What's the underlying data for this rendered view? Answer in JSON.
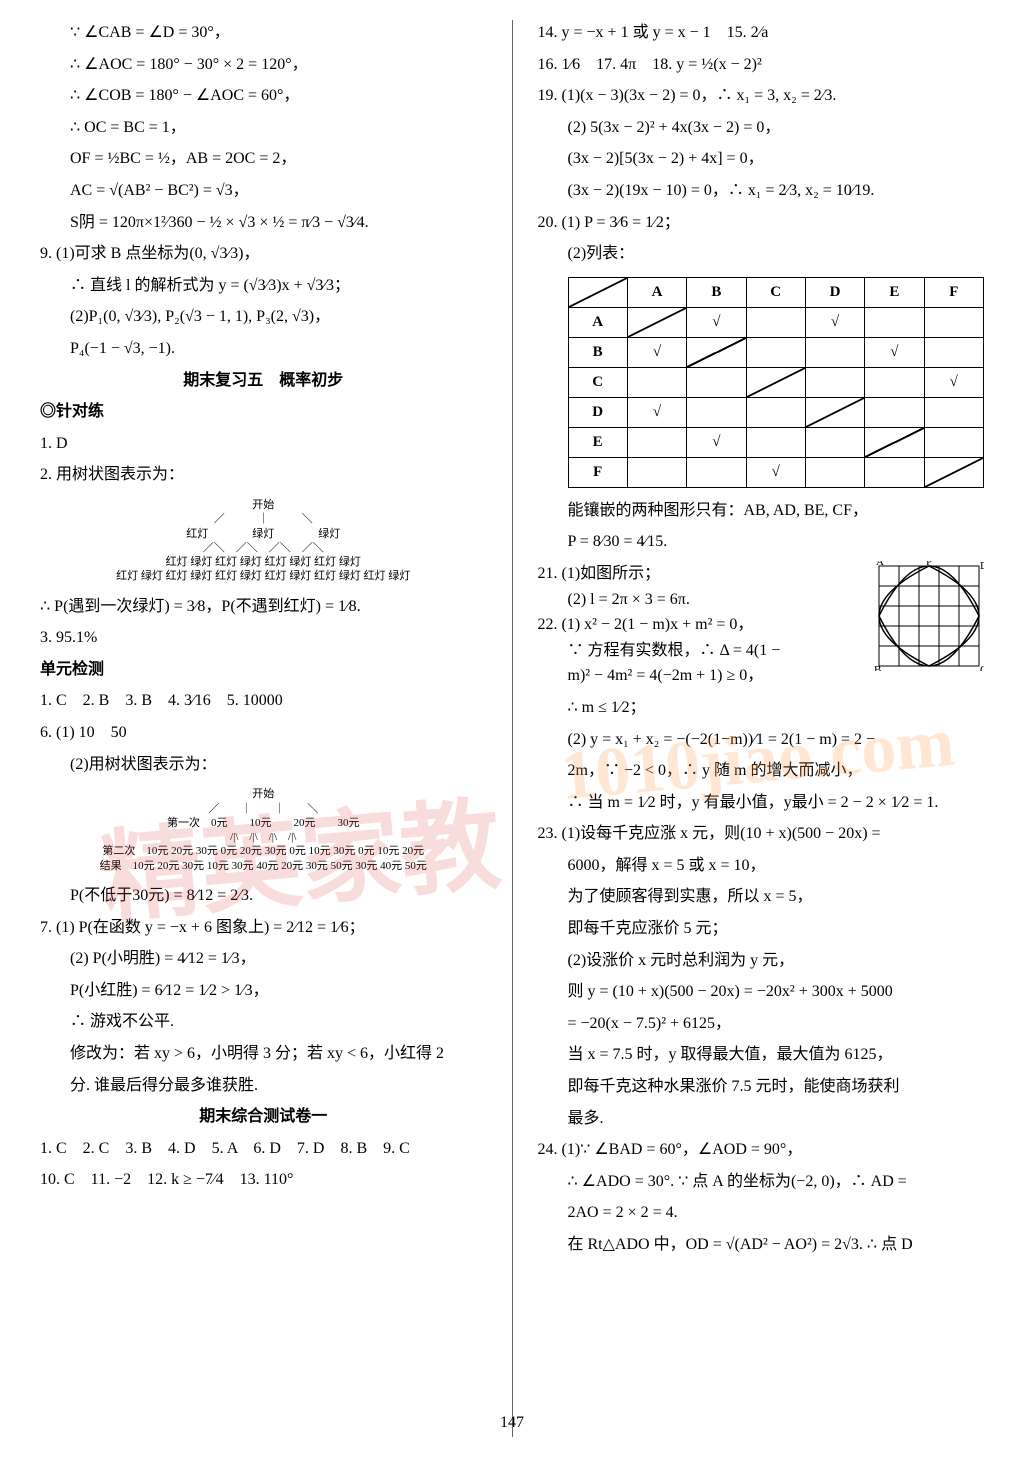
{
  "left": {
    "l1": "∵ ∠CAB = ∠D = 30°，",
    "l2": "∴ ∠AOC = 180° − 30° × 2 = 120°，",
    "l3": "∴ ∠COB = 180° − ∠AOC = 60°，",
    "l4": "∴ OC = BC = 1，",
    "l5": "OF = ½BC = ½，AB = 2OC = 2，",
    "l6": "AC = √(AB² − BC²) = √3，",
    "l7": "S阴 = 120π×1²⁄360 − ½ × √3 × ½ = π⁄3 − √3⁄4.",
    "l8": "9. (1)可求 B 点坐标为(0, √3⁄3)，",
    "l9": "∴ 直线 l 的解析式为 y = (√3⁄3)x + √3⁄3；",
    "l10": "(2)P₁(0, √3⁄3), P₂(√3 − 1, 1), P₃(2, √3)，",
    "l11": "P₄(−1 − √3, −1).",
    "title1": "期末复习五　概率初步",
    "section1": "◎针对练",
    "l12": "1. D",
    "l13": "2. 用树状图表示为：",
    "tree1_top": "开始",
    "tree1_l2": "红灯　　　　绿灯　　　　绿灯",
    "tree1_l3": "红灯 绿灯 红灯 绿灯 红灯 绿灯 红灯 绿灯",
    "tree1_l4": "红灯 绿灯 红灯 绿灯 红灯 绿灯 红灯 绿灯 红灯 绿灯 红灯 绿灯",
    "l14": "∴ P(遇到一次绿灯) = 3⁄8，P(不遇到红灯) = 1⁄8.",
    "l15": "3. 95.1%",
    "section2": "单元检测",
    "l16": "1. C　2. B　3. B　4. 3⁄16　5. 10000",
    "l17": "6. (1) 10　50",
    "l18": "(2)用树状图表示为：",
    "tree2_top": "开始",
    "tree2_l2a": "第一次",
    "tree2_l2": "0元　　10元　　20元　　30元",
    "tree2_l3a": "第二次",
    "tree2_l3": "10元 20元 30元 0元 20元 30元 0元 10元 30元 0元 10元 20元",
    "tree2_l4a": "结果",
    "tree2_l4": "10元 20元 30元 10元 30元 40元 20元 30元 50元 30元 40元 50元",
    "l19": "P(不低于30元) = 8⁄12 = 2⁄3.",
    "l20": "7. (1) P(在函数 y = −x + 6 图象上) = 2⁄12 = 1⁄6；",
    "l21": "(2) P(小明胜) = 4⁄12 = 1⁄3，",
    "l22": "P(小红胜) = 6⁄12 = 1⁄2 > 1⁄3，",
    "l23": "∴ 游戏不公平.",
    "l24": "修改为：若 xy > 6，小明得 3 分；若 xy < 6，小红得 2",
    "l25": "分. 谁最后得分最多谁获胜.",
    "title2": "期末综合测试卷一",
    "l26": "1. C　2. C　3. B　4. D　5. A　6. D　7. D　8. B　9. C",
    "l27": "10. C　11. −2　12. k ≥ −7⁄4　13. 110°"
  },
  "right": {
    "r1": "14. y = −x + 1 或 y = x − 1　15. 2⁄a",
    "r2": "16. 1⁄6　17. 4π　18. y = ½(x − 2)²",
    "r3": "19. (1)(x − 3)(3x − 2) = 0，∴ x₁ = 3, x₂ = 2⁄3.",
    "r4": "(2) 5(3x − 2)² + 4x(3x − 2) = 0，",
    "r5": "(3x − 2)[5(3x − 2) + 4x] = 0，",
    "r6": "(3x − 2)(19x − 10) = 0，∴ x₁ = 2⁄3, x₂ = 10⁄19.",
    "r7": "20. (1) P = 3⁄6 = 1⁄2；",
    "r8": "(2)列表：",
    "table": {
      "headers": [
        "",
        "A",
        "B",
        "C",
        "D",
        "E",
        "F"
      ],
      "rows": [
        [
          "A",
          "diag",
          "√",
          "",
          "√",
          "",
          ""
        ],
        [
          "B",
          "√",
          "diag",
          "",
          "",
          "√",
          ""
        ],
        [
          "C",
          "",
          "",
          "diag",
          "",
          "",
          "√"
        ],
        [
          "D",
          "√",
          "",
          "",
          "diag",
          "",
          ""
        ],
        [
          "E",
          "",
          "√",
          "",
          "",
          "diag",
          ""
        ],
        [
          "F",
          "",
          "",
          "√",
          "",
          "",
          "diag"
        ]
      ]
    },
    "r9": "能镶嵌的两种图形只有：AB, AD, BE, CF，",
    "r10": "P = 8⁄30 = 4⁄15.",
    "r11": "21. (1)如图所示；",
    "r12": "(2) l = 2π × 3 = 6π.",
    "r13": "22. (1) x² − 2(1 − m)x + m² = 0，",
    "r14": "∵ 方程有实数根，∴ Δ = 4(1 −",
    "r15": "m)² − 4m² = 4(−2m + 1) ≥ 0，",
    "r16": "∴ m ≤ 1⁄2；",
    "r17": "(2) y = x₁ + x₂ = −(−2(1−m))⁄1 = 2(1 − m) = 2 −",
    "r18": "2m，∵ −2 < 0，∴ y 随 m 的增大而减小，",
    "r19": "∴ 当 m = 1⁄2 时，y 有最小值，y最小 = 2 − 2 × 1⁄2 = 1.",
    "r20": "23. (1)设每千克应涨 x 元，则(10 + x)(500 − 20x) =",
    "r21": "6000，解得 x = 5 或 x = 10，",
    "r22": "为了使顾客得到实惠，所以 x = 5，",
    "r23": "即每千克应涨价 5 元；",
    "r24": "(2)设涨价 x 元时总利润为 y 元，",
    "r25": "则 y = (10 + x)(500 − 20x) = −20x² + 300x + 5000",
    "r26": "= −20(x − 7.5)² + 6125，",
    "r27": "当 x = 7.5 时，y 取得最大值，最大值为 6125，",
    "r28": "即每千克这种水果涨价 7.5 元时，能使商场获利",
    "r29": "最多.",
    "r30": "24. (1)∵ ∠BAD = 60°，∠AOD = 90°，",
    "r31": "∴ ∠ADO = 30°. ∵ 点 A 的坐标为(−2, 0)，∴ AD =",
    "r32": "2AO = 2 × 2 = 4.",
    "r33": "在 Rt△ADO 中，OD = √(AD² − AO²) = 2√3. ∴ 点 D"
  },
  "figure21": {
    "labels": {
      "A": "A",
      "P": "P",
      "D": "D",
      "B": "B",
      "C": "C"
    }
  },
  "pagenum": "147",
  "watermark1": "精英家教",
  "watermark2": "1010jiao.com"
}
